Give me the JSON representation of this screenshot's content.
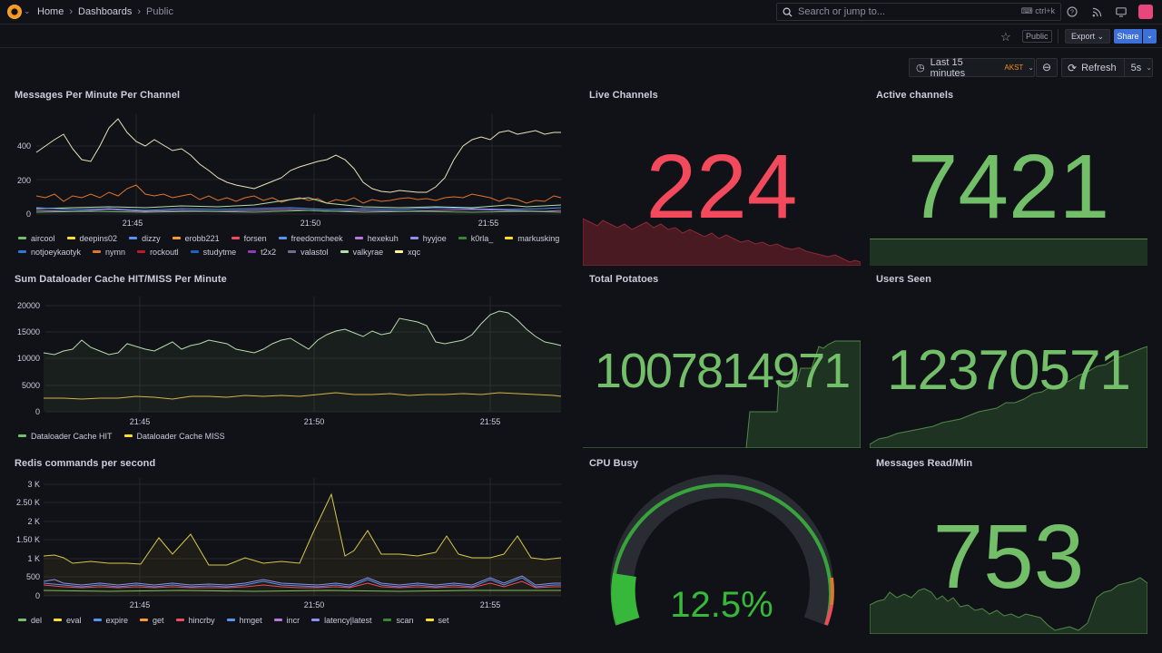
{
  "topbar": {
    "breadcrumbs": [
      "Home",
      "Dashboards",
      "Public"
    ],
    "search_placeholder": "Search or jump to...",
    "search_shortcut": "ctrl+k"
  },
  "subbar": {
    "public_badge": "Public",
    "export_label": "Export",
    "share_label": "Share"
  },
  "controls": {
    "time_range": "Last 15 minutes",
    "timezone": "AKST",
    "refresh_label": "Refresh",
    "refresh_interval": "5s"
  },
  "colors": {
    "green": "#73bf69",
    "red": "#f2495c",
    "yellow": "#fade2a",
    "blue": "#5794f2",
    "orange": "#ff9830",
    "purple": "#b877d9"
  },
  "panels": {
    "messages": {
      "title": "Messages Per Minute Per Channel",
      "y_ticks": [
        "400",
        "200",
        "0"
      ],
      "x_ticks": [
        "21:45",
        "21:50",
        "21:55"
      ],
      "legend": [
        {
          "name": "aircool",
          "color": "#73bf69"
        },
        {
          "name": "deepins02",
          "color": "#fade2a"
        },
        {
          "name": "dizzy",
          "color": "#5794f2"
        },
        {
          "name": "erobb221",
          "color": "#ff9830"
        },
        {
          "name": "forsen",
          "color": "#f2495c"
        },
        {
          "name": "freedomcheek",
          "color": "#5794f2"
        },
        {
          "name": "hexekuh",
          "color": "#b877d9"
        },
        {
          "name": "hyyjoe",
          "color": "#8f8fef"
        },
        {
          "name": "k0rla_",
          "color": "#37872d"
        },
        {
          "name": "markusking",
          "color": "#fade2a"
        },
        {
          "name": "notjoeykaotyk",
          "color": "#3274d9"
        },
        {
          "name": "nymn",
          "color": "#e0752d"
        },
        {
          "name": "rockoutl",
          "color": "#c4162a"
        },
        {
          "name": "studytme",
          "color": "#1f60c4"
        },
        {
          "name": "t2x2",
          "color": "#8f3bb8"
        },
        {
          "name": "valastol",
          "color": "#6e6e8e"
        },
        {
          "name": "valkyrae",
          "color": "#b7dbab"
        },
        {
          "name": "xqc",
          "color": "#fff899"
        }
      ]
    },
    "live_channels": {
      "title": "Live Channels",
      "value": "224"
    },
    "active_channels": {
      "title": "Active channels",
      "value": "7421"
    },
    "dataloader": {
      "title": "Sum Dataloader Cache HIT/MISS Per Minute",
      "y_ticks": [
        "20000",
        "15000",
        "10000",
        "5000",
        "0"
      ],
      "x_ticks": [
        "21:45",
        "21:50",
        "21:55"
      ],
      "legend": [
        {
          "name": "Dataloader Cache HIT",
          "color": "#73bf69"
        },
        {
          "name": "Dataloader Cache MISS",
          "color": "#fade2a"
        }
      ]
    },
    "total_potatoes": {
      "title": "Total Potatoes",
      "value": "1007814971"
    },
    "users_seen": {
      "title": "Users Seen",
      "value": "12370571"
    },
    "redis": {
      "title": "Redis commands per second",
      "y_ticks": [
        "3 K",
        "2.50 K",
        "2 K",
        "1.50 K",
        "1 K",
        "500",
        "0"
      ],
      "x_ticks": [
        "21:45",
        "21:50",
        "21:55"
      ],
      "legend": [
        {
          "name": "del",
          "color": "#73bf69"
        },
        {
          "name": "eval",
          "color": "#fade2a"
        },
        {
          "name": "expire",
          "color": "#5794f2"
        },
        {
          "name": "get",
          "color": "#ff9830"
        },
        {
          "name": "hincrby",
          "color": "#f2495c"
        },
        {
          "name": "hmget",
          "color": "#5794f2"
        },
        {
          "name": "incr",
          "color": "#b877d9"
        },
        {
          "name": "latency|latest",
          "color": "#8f8fef"
        },
        {
          "name": "scan",
          "color": "#37872d"
        },
        {
          "name": "set",
          "color": "#fade2a"
        }
      ]
    },
    "cpu_busy": {
      "title": "CPU Busy",
      "value": "12.5%",
      "percent": 12.5
    },
    "messages_read": {
      "title": "Messages Read/Min",
      "value": "753"
    }
  }
}
